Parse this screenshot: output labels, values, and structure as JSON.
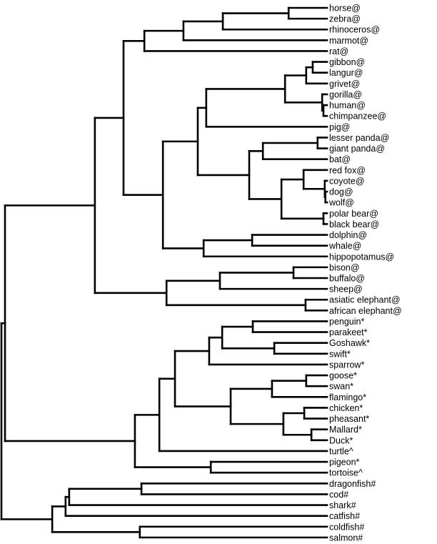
{
  "chart_data": {
    "type": "dendrogram",
    "orientation": "leaves-right",
    "line_color": "#000000",
    "height_scale": "relative (root = 1, leaves = 0)",
    "tree": {
      "h": 1.0,
      "c": [
        {
          "h": 0.989,
          "c": [
            {
              "h": 0.713,
              "c": [
                {
                  "h": 0.625,
                  "c": [
                    {
                      "h": 0.561,
                      "c": [
                        {
                          "h": 0.441,
                          "c": [
                            {
                              "h": 0.32,
                              "c": [
                                {
                                  "h": 0.118,
                                  "c": [
                                    "horse@",
                                    "zebra@"
                                  ]
                                },
                                "rhinoceros@"
                              ]
                            },
                            "marmot@"
                          ]
                        },
                        "rat@"
                      ]
                    },
                    {
                      "h": 0.504,
                      "c": [
                        {
                          "h": 0.397,
                          "c": [
                            {
                              "h": 0.371,
                              "c": [
                                {
                                  "h": 0.129,
                                  "c": [
                                    {
                                      "h": 0.064,
                                      "c": [
                                        {
                                          "h": 0.044,
                                          "c": [
                                            "gibbon@",
                                            "langur@"
                                          ]
                                        },
                                        "grivet@"
                                      ]
                                    },
                                    {
                                      "h": 0.015,
                                      "c": [
                                        "gorilla@",
                                        {
                                          "h": 0.011,
                                          "c": [
                                            "human@",
                                            "chimpanzee@"
                                          ]
                                        }
                                      ]
                                    }
                                  ]
                                },
                                "pig@"
                              ]
                            },
                            {
                              "h": 0.239,
                              "c": [
                                {
                                  "h": 0.197,
                                  "c": [
                                    {
                                      "h": 0.029,
                                      "c": [
                                        "lesser panda@",
                                        "giant panda@"
                                      ]
                                    },
                                    "bat@"
                                  ]
                                },
                                {
                                  "h": 0.14,
                                  "c": [
                                    {
                                      "h": 0.072,
                                      "c": [
                                        "red fox@",
                                        {
                                          "h": 0.007,
                                          "c": [
                                            "coyote@",
                                            {
                                              "h": 0.005,
                                              "c": [
                                                "dog@",
                                                "wolf@"
                                              ]
                                            }
                                          ]
                                        }
                                      ]
                                    },
                                    {
                                      "h": 0.011,
                                      "c": [
                                        "polar bear@",
                                        "black bear@"
                                      ]
                                    }
                                  ]
                                }
                              ]
                            }
                          ]
                        },
                        {
                          "h": 0.379,
                          "c": [
                            {
                              "h": 0.23,
                              "c": [
                                "dolphin@",
                                "whale@"
                              ]
                            },
                            "hippopotamus@"
                          ]
                        }
                      ]
                    }
                  ]
                },
                {
                  "h": 0.493,
                  "c": [
                    {
                      "h": 0.329,
                      "c": [
                        {
                          "h": 0.103,
                          "c": [
                            "bison@",
                            "buffalo@"
                          ]
                        },
                        "sheep@"
                      ]
                    },
                    {
                      "h": 0.066,
                      "c": [
                        "asiatic elephant@",
                        "african elephant@"
                      ]
                    }
                  ]
                }
              ]
            },
            {
              "h": 0.59,
              "c": [
                {
                  "h": 0.515,
                  "c": [
                    {
                      "h": 0.467,
                      "c": [
                        {
                          "h": 0.362,
                          "c": [
                            {
                              "h": 0.322,
                              "c": [
                                {
                                  "h": 0.228,
                                  "c": [
                                    "penguin*",
                                    "parakeet*"
                                  ]
                                },
                                {
                                  "h": 0.162,
                                  "c": [
                                    "Goshawk*",
                                    "swift*"
                                  ]
                                }
                              ]
                            },
                            "sparrow*"
                          ]
                        },
                        {
                          "h": 0.296,
                          "c": [
                            {
                              "h": 0.169,
                              "c": [
                                {
                                  "h": 0.064,
                                  "c": [
                                    "goose*",
                                    "swan*"
                                  ]
                                },
                                "flamingo*"
                              ]
                            },
                            {
                              "h": 0.134,
                              "c": [
                                {
                                  "h": 0.07,
                                  "c": [
                                    "chicken*",
                                    "pheasant*"
                                  ]
                                },
                                {
                                  "h": 0.048,
                                  "c": [
                                    "Mallard*",
                                    "Duck*"
                                  ]
                                }
                              ]
                            }
                          ]
                        }
                      ]
                    },
                    "turtle^"
                  ]
                },
                {
                  "h": 0.357,
                  "c": [
                    "pigeon*",
                    "tortoise^"
                  ]
                }
              ]
            }
          ]
        },
        {
          "h": 0.844,
          "c": [
            {
              "h": 0.803,
              "c": [
                {
                  "h": 0.792,
                  "c": [
                    {
                      "h": 0.57,
                      "c": [
                        "dragonfish#",
                        "cod#"
                      ]
                    },
                    "shark#"
                  ]
                },
                "catfish#"
              ]
            },
            {
              "h": 0.575,
              "c": [
                "coldfish#",
                "salmon#"
              ]
            }
          ]
        }
      ]
    }
  }
}
